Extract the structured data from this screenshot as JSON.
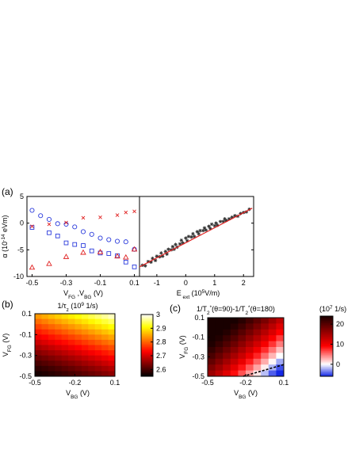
{
  "panel_labels": {
    "a": "(a)",
    "b": "(b)",
    "c": "(c)"
  },
  "chart_data": [
    {
      "type": "scatter",
      "panel": "(a) left",
      "ylabel": "α (10⁻¹⁴ eVm)",
      "xlabel": "V_FG, V_BG (V)",
      "xlim": [
        -0.53,
        0.13
      ],
      "ylim": [
        -10,
        5
      ],
      "xticks": [
        "-0.5",
        "-0.3",
        "-0.1",
        "0.1"
      ],
      "xtick_values": [
        -0.5,
        -0.3,
        -0.1,
        0.1
      ],
      "yticks": [
        "5",
        "0",
        "-5",
        "-10"
      ],
      "ytick_values": [
        5,
        0,
        -5,
        -10
      ],
      "colors": {
        "red": "#e02020",
        "blue": "#2b3bdc"
      },
      "series": [
        {
          "marker": "circle",
          "color": "blue",
          "x": [
            -0.5,
            -0.45,
            -0.4,
            -0.35,
            -0.3,
            -0.25,
            -0.2,
            -0.15,
            -0.1,
            -0.05,
            0.0,
            0.05,
            0.1
          ],
          "y": [
            2.4,
            1.4,
            0.7,
            -0.1,
            -0.2,
            -0.7,
            -1.6,
            -2.1,
            -2.8,
            -3.1,
            -3.4,
            -3.5,
            -4.9
          ]
        },
        {
          "marker": "square",
          "color": "blue",
          "x": [
            -0.5,
            -0.4,
            -0.35,
            -0.3,
            -0.25,
            -0.2,
            -0.15,
            -0.1,
            -0.05,
            0.0,
            0.05,
            0.1
          ],
          "y": [
            -0.8,
            -1.8,
            -2.4,
            -3.7,
            -4.0,
            -4.2,
            -5.2,
            -5.6,
            -5.7,
            -6.1,
            -7.3,
            -8.2
          ]
        },
        {
          "marker": "x",
          "color": "red",
          "x": [
            -0.5,
            -0.4,
            -0.3,
            -0.2,
            -0.1,
            0.0,
            0.05,
            0.1
          ],
          "y": [
            -0.6,
            -0.2,
            0.1,
            1.0,
            1.1,
            1.5,
            2.0,
            2.2
          ]
        },
        {
          "marker": "triangle",
          "color": "red",
          "x": [
            -0.5,
            -0.4,
            -0.3,
            -0.2,
            -0.1,
            0.0,
            0.05,
            0.1
          ],
          "y": [
            -8.3,
            -7.6,
            -6.3,
            -5.5,
            -5.4,
            -6.2,
            -6.4,
            -4.9
          ]
        }
      ]
    },
    {
      "type": "scatter",
      "panel": "(a) right",
      "xlabel": "E_ext (10⁵ V/m)",
      "xlim": [
        -1.6,
        2.35
      ],
      "ylim": [
        -10,
        5
      ],
      "xticks": [
        "-1",
        "0",
        "1",
        "2"
      ],
      "xtick_values": [
        -1,
        0,
        1,
        2
      ],
      "fit": {
        "color": "#e02020",
        "x": [
          -1.6,
          2.3
        ],
        "y": [
          -8.2,
          2.8
        ]
      },
      "points": {
        "marker": "star",
        "color": "#333333",
        "x": [
          -1.5,
          -1.4,
          -1.3,
          -1.2,
          -1.15,
          -1.05,
          -1.0,
          -0.9,
          -0.85,
          -0.8,
          -0.7,
          -0.65,
          -0.6,
          -0.5,
          -0.45,
          -0.4,
          -0.35,
          -0.3,
          -0.2,
          -0.15,
          -0.1,
          0.0,
          0.05,
          0.1,
          0.2,
          0.25,
          0.3,
          0.4,
          0.45,
          0.5,
          0.6,
          0.65,
          0.7,
          0.8,
          0.85,
          0.9,
          1.0,
          1.05,
          1.1,
          1.2,
          1.3,
          1.35,
          1.4,
          1.5,
          1.6,
          1.7,
          1.8,
          1.9,
          2.0,
          2.1,
          2.2
        ],
        "y": [
          -7.9,
          -8.0,
          -7.2,
          -7.3,
          -6.6,
          -7.0,
          -6.2,
          -6.3,
          -5.6,
          -6.2,
          -5.3,
          -5.8,
          -4.9,
          -5.0,
          -4.4,
          -4.9,
          -4.0,
          -4.5,
          -3.9,
          -3.2,
          -3.7,
          -2.8,
          -3.3,
          -2.5,
          -2.6,
          -2.0,
          -2.5,
          -1.6,
          -2.0,
          -1.4,
          -1.4,
          -0.9,
          -1.3,
          -0.6,
          -1.0,
          -0.2,
          -0.5,
          0.0,
          -0.4,
          0.3,
          0.3,
          0.8,
          0.5,
          0.8,
          1.1,
          1.4,
          1.3,
          1.8,
          2.0,
          2.1,
          2.6
        ]
      }
    },
    {
      "type": "heatmap",
      "panel": "(b)",
      "title": "1/τ_z (10⁹ 1/s)",
      "xlabel": "V_BG (V)",
      "ylabel": "V_FG (V)",
      "xlim": [
        -0.5,
        0.1
      ],
      "ylim": [
        -0.5,
        0.1
      ],
      "xticks": [
        "-0.5",
        "-0.2",
        "0.1"
      ],
      "xtick_values": [
        -0.5,
        -0.2,
        0.1
      ],
      "yticks": [
        "0.1",
        "-0.1",
        "-0.3",
        "-0.5"
      ],
      "ytick_values": [
        0.1,
        -0.1,
        -0.3,
        -0.5
      ],
      "colorbar": {
        "min": 2.55,
        "max": 3.0,
        "ticks": [
          "3",
          "2.9",
          "2.8",
          "2.7",
          "2.6"
        ],
        "tick_values": [
          3.0,
          2.9,
          2.8,
          2.7,
          2.6
        ],
        "colormap": "hot"
      },
      "grid_size": 12,
      "model": "value = 2.56 + 0.44 * ((vfg + 0.5)/0.6*0.72 + (vbg + 0.5)/0.6*0.28)^1.3",
      "rows_top_to_bottom_note": "cols V_BG -0.5 → 0.1, rows V_FG 0.1 → -0.5"
    },
    {
      "type": "heatmap",
      "panel": "(c)",
      "title": "1/T₂*(θ=90)-1/T₂*(θ=180)",
      "colorbar_unit": "(10⁷ 1/s)",
      "xlabel": "V_BG (V)",
      "ylabel": "V_FG (V)",
      "xlim": [
        -0.5,
        0.1
      ],
      "ylim": [
        -0.5,
        0.1
      ],
      "xticks": [
        "-0.5",
        "-0.2",
        "0.1"
      ],
      "xtick_values": [
        -0.5,
        -0.2,
        0.1
      ],
      "yticks": [
        "0.1",
        "-0.1",
        "-0.3",
        "-0.5"
      ],
      "ytick_values": [
        0.1,
        -0.1,
        -0.3,
        -0.5
      ],
      "colorbar": {
        "min": -6,
        "max": 24,
        "ticks": [
          "20",
          "10",
          "0"
        ],
        "tick_values": [
          20,
          10,
          0
        ],
        "colormap": "blue-white-red-black"
      },
      "grid_size": 10,
      "zero_contour": {
        "style": "dashed",
        "color": "#000000",
        "x": [
          -0.22,
          0.1
        ],
        "y": [
          -0.5,
          -0.38
        ]
      }
    }
  ]
}
